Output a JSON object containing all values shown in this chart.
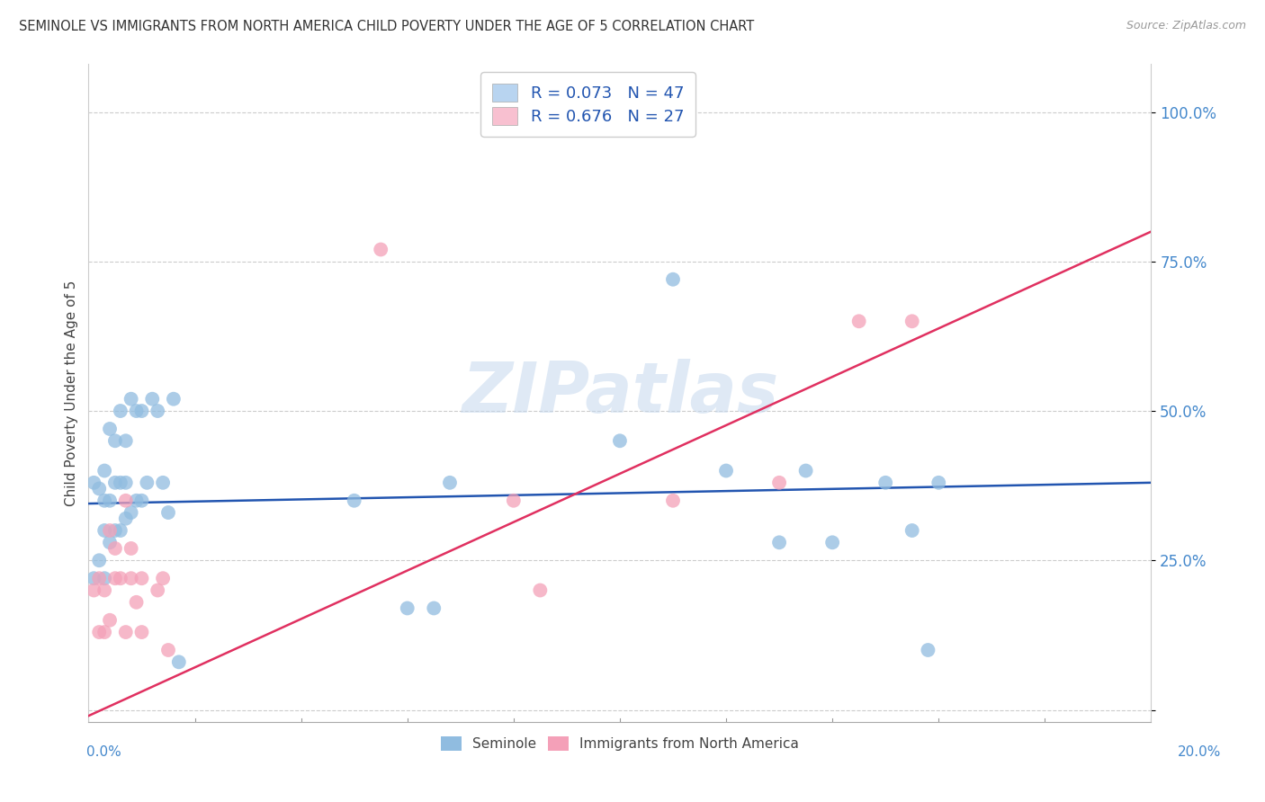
{
  "title": "SEMINOLE VS IMMIGRANTS FROM NORTH AMERICA CHILD POVERTY UNDER THE AGE OF 5 CORRELATION CHART",
  "source": "Source: ZipAtlas.com",
  "ylabel": "Child Poverty Under the Age of 5",
  "xlim": [
    0.0,
    0.2
  ],
  "ylim": [
    -0.02,
    1.08
  ],
  "yticks": [
    0.0,
    0.25,
    0.5,
    0.75,
    1.0
  ],
  "ytick_labels": [
    "",
    "25.0%",
    "50.0%",
    "75.0%",
    "100.0%"
  ],
  "watermark_text": "ZIPatlas",
  "series1_label": "Seminole",
  "series2_label": "Immigrants from North America",
  "series1_color": "#90bce0",
  "series2_color": "#f4a0b8",
  "series1_line_color": "#2255b0",
  "series2_line_color": "#e03060",
  "legend1_text": "R = 0.073   N = 47",
  "legend2_text": "R = 0.676   N = 27",
  "legend1_patch_color": "#b8d4f0",
  "legend2_patch_color": "#f8c0d0",
  "background_color": "#ffffff",
  "grid_color": "#cccccc",
  "seminole_x": [
    0.001,
    0.001,
    0.002,
    0.002,
    0.003,
    0.003,
    0.003,
    0.003,
    0.004,
    0.004,
    0.004,
    0.005,
    0.005,
    0.005,
    0.006,
    0.006,
    0.006,
    0.007,
    0.007,
    0.007,
    0.008,
    0.008,
    0.009,
    0.009,
    0.01,
    0.01,
    0.011,
    0.012,
    0.013,
    0.014,
    0.015,
    0.016,
    0.017,
    0.05,
    0.06,
    0.065,
    0.068,
    0.1,
    0.11,
    0.12,
    0.13,
    0.135,
    0.14,
    0.15,
    0.155,
    0.158,
    0.16
  ],
  "seminole_y": [
    0.22,
    0.38,
    0.25,
    0.37,
    0.22,
    0.3,
    0.35,
    0.4,
    0.28,
    0.35,
    0.47,
    0.3,
    0.38,
    0.45,
    0.3,
    0.38,
    0.5,
    0.32,
    0.38,
    0.45,
    0.33,
    0.52,
    0.35,
    0.5,
    0.35,
    0.5,
    0.38,
    0.52,
    0.5,
    0.38,
    0.33,
    0.52,
    0.08,
    0.35,
    0.17,
    0.17,
    0.38,
    0.45,
    0.72,
    0.4,
    0.28,
    0.4,
    0.28,
    0.38,
    0.3,
    0.1,
    0.38
  ],
  "immigrants_x": [
    0.001,
    0.002,
    0.002,
    0.003,
    0.003,
    0.004,
    0.004,
    0.005,
    0.005,
    0.006,
    0.007,
    0.007,
    0.008,
    0.008,
    0.009,
    0.01,
    0.01,
    0.013,
    0.014,
    0.015,
    0.055,
    0.08,
    0.085,
    0.11,
    0.13,
    0.145,
    0.155
  ],
  "immigrants_y": [
    0.2,
    0.13,
    0.22,
    0.13,
    0.2,
    0.15,
    0.3,
    0.22,
    0.27,
    0.22,
    0.13,
    0.35,
    0.22,
    0.27,
    0.18,
    0.13,
    0.22,
    0.2,
    0.22,
    0.1,
    0.77,
    0.35,
    0.2,
    0.35,
    0.38,
    0.65,
    0.65
  ],
  "blue_line_y0": 0.345,
  "blue_line_y1": 0.38,
  "pink_line_y0": -0.01,
  "pink_line_y1": 0.8
}
